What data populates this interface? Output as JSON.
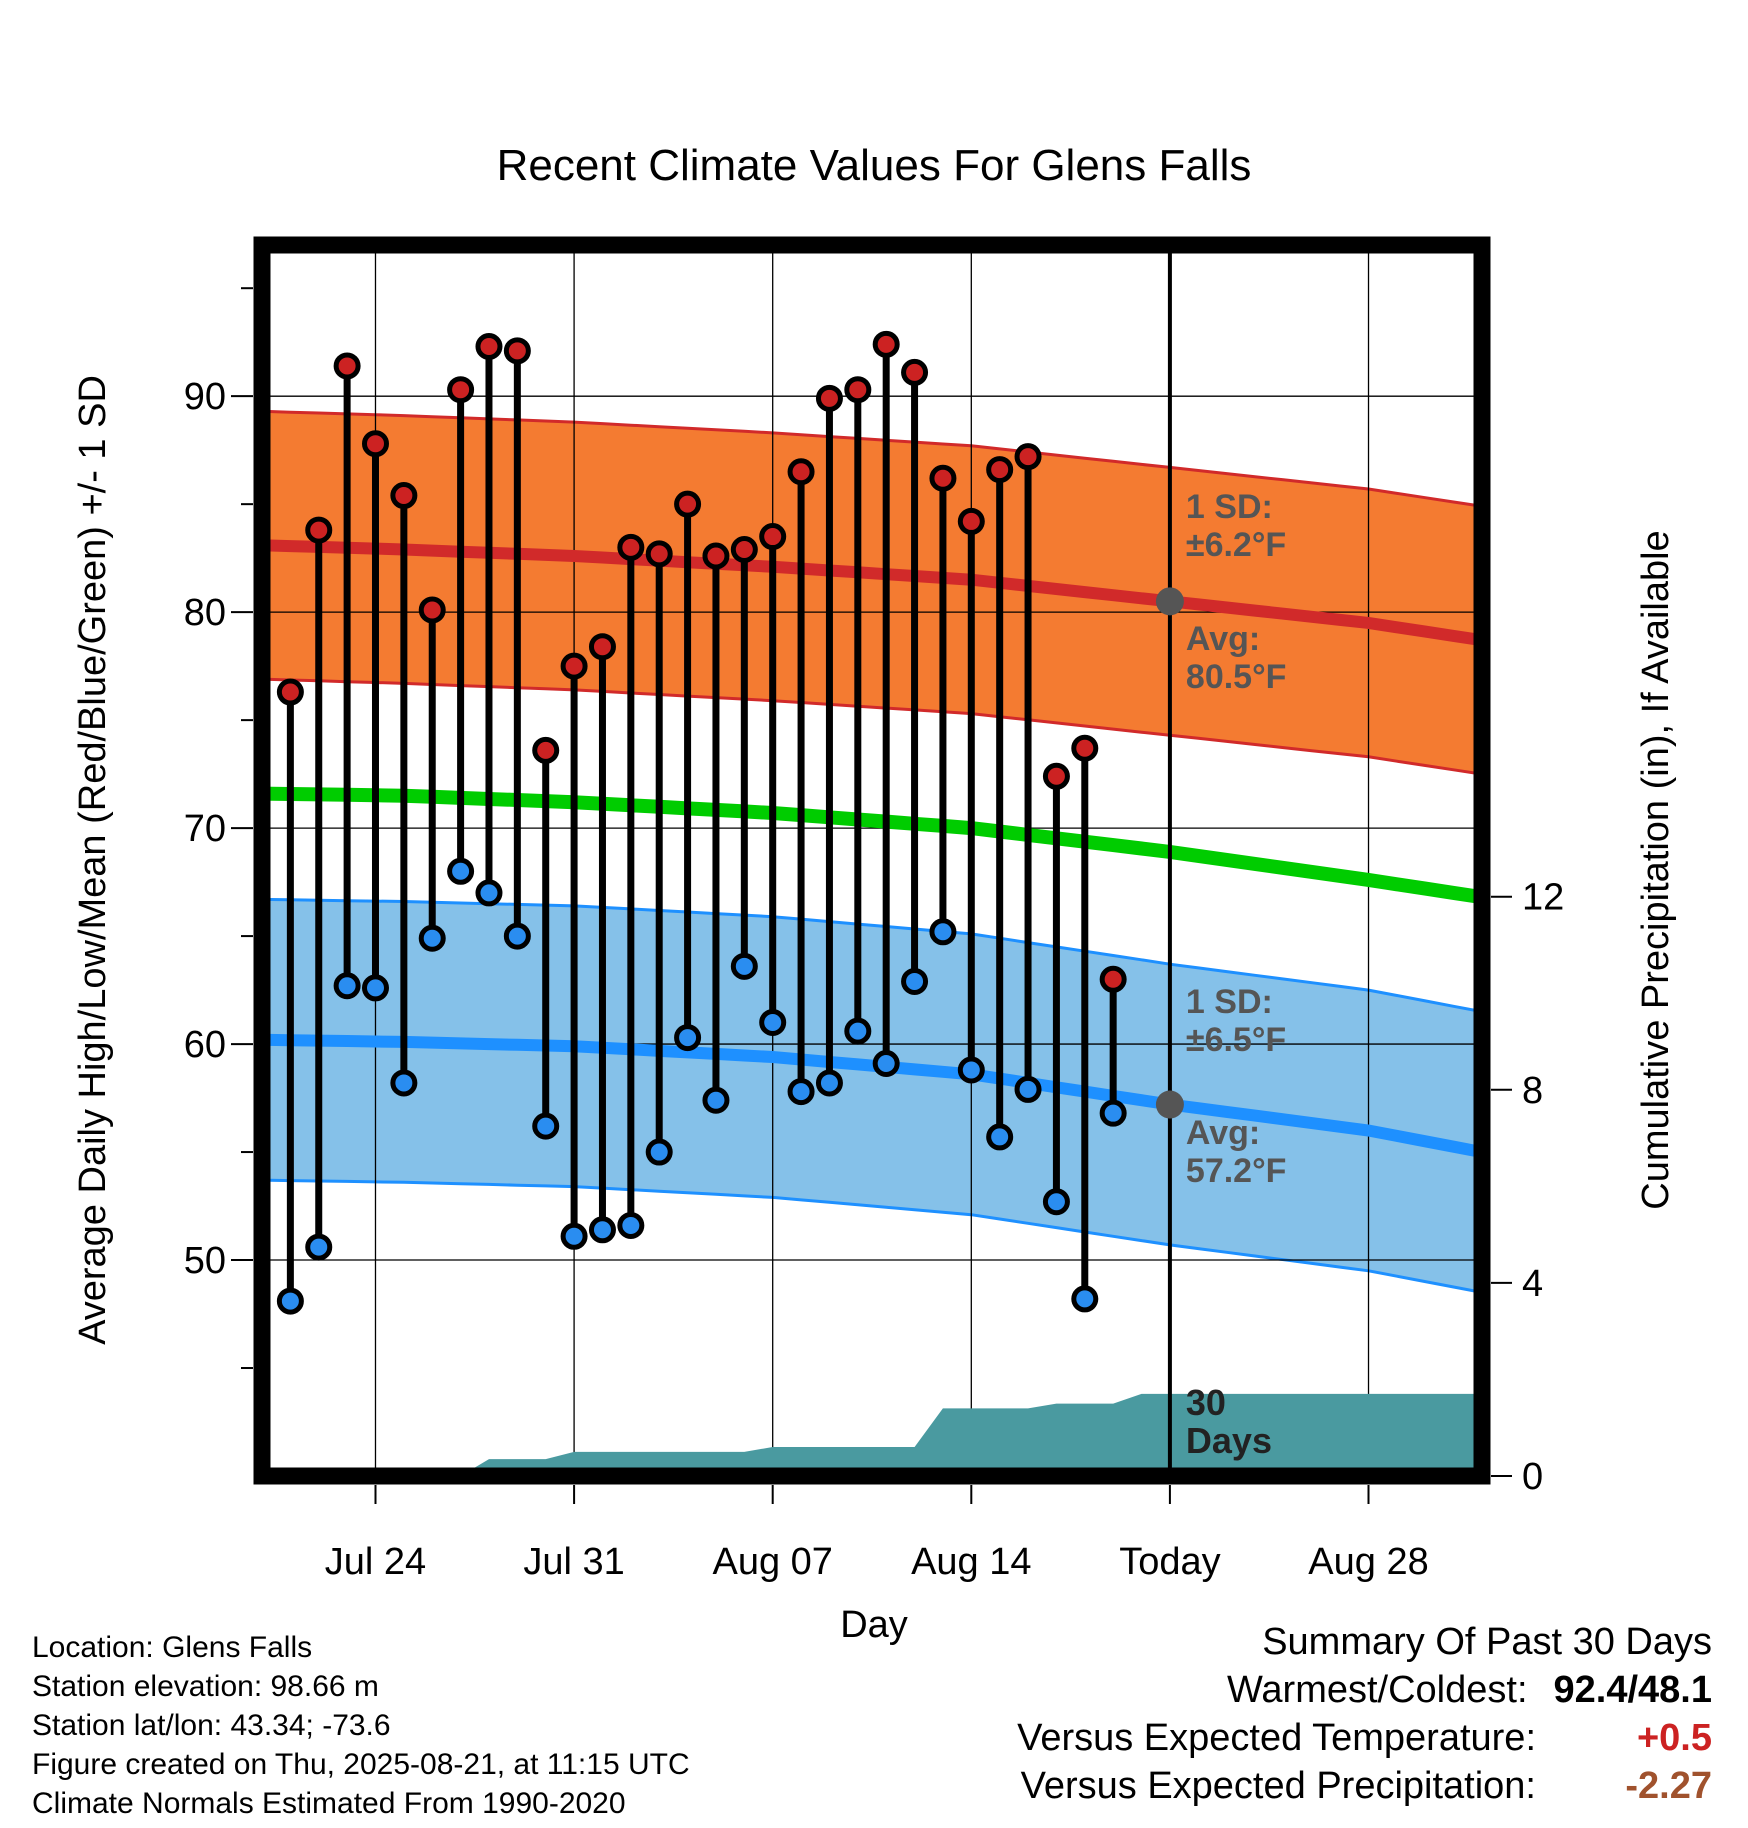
{
  "chart_data": {
    "type": "line",
    "title": "Recent Climate Values For Glens Falls",
    "xlabel": "Day",
    "ylabel_left": "Average Daily High/Low/Mean (Red/Blue/Green) +/- 1 SD",
    "ylabel_right": "Cumulative Precipitation (in), If Available",
    "x_tick_labels": [
      "Jul 24",
      "Jul 31",
      "Aug 07",
      "Aug 14",
      "Today",
      "Aug 28"
    ],
    "x_tick_days": [
      "2025-07-24",
      "2025-07-31",
      "2025-08-07",
      "2025-08-14",
      "2025-08-21",
      "2025-08-28"
    ],
    "xlim": [
      "2025-07-20",
      "2025-09-01"
    ],
    "ylim_left": [
      40,
      97
    ],
    "y_ticks_left": [
      50,
      60,
      70,
      80,
      90
    ],
    "ylim_right": [
      0,
      25.5
    ],
    "y_ticks_right": [
      0,
      4,
      8,
      12
    ],
    "grid": true,
    "today": "2025-08-21",
    "days": [
      "2025-07-21",
      "2025-07-22",
      "2025-07-23",
      "2025-07-24",
      "2025-07-25",
      "2025-07-26",
      "2025-07-27",
      "2025-07-28",
      "2025-07-29",
      "2025-07-30",
      "2025-07-31",
      "2025-08-01",
      "2025-08-02",
      "2025-08-03",
      "2025-08-04",
      "2025-08-05",
      "2025-08-06",
      "2025-08-07",
      "2025-08-08",
      "2025-08-09",
      "2025-08-10",
      "2025-08-11",
      "2025-08-12",
      "2025-08-13",
      "2025-08-14",
      "2025-08-15",
      "2025-08-16",
      "2025-08-17",
      "2025-08-18",
      "2025-08-19",
      "2025-08-20"
    ],
    "daily_high": [
      76.3,
      83.8,
      91.4,
      87.8,
      85.4,
      80.1,
      90.3,
      92.3,
      92.1,
      73.6,
      77.5,
      78.4,
      83.0,
      82.7,
      85.0,
      82.6,
      82.9,
      83.5,
      86.5,
      89.9,
      90.3,
      92.4,
      91.1,
      86.2,
      84.2,
      86.6,
      87.2,
      72.4,
      73.7,
      63.0,
      null
    ],
    "daily_low": [
      48.1,
      50.6,
      62.7,
      62.6,
      58.2,
      64.9,
      68.0,
      67.0,
      65.0,
      56.2,
      51.1,
      51.4,
      51.6,
      55.0,
      60.3,
      57.4,
      63.6,
      61.0,
      57.8,
      58.2,
      60.6,
      59.1,
      62.9,
      65.2,
      58.8,
      55.7,
      57.9,
      52.7,
      48.2,
      56.8,
      null
    ],
    "normal_days": [
      "2025-07-20",
      "2025-07-25",
      "2025-07-31",
      "2025-08-07",
      "2025-08-14",
      "2025-08-21",
      "2025-08-28",
      "2025-09-01"
    ],
    "normal_high": [
      83.1,
      82.9,
      82.6,
      82.1,
      81.5,
      80.5,
      79.5,
      78.7
    ],
    "normal_high_sd": 6.2,
    "normal_low": [
      60.2,
      60.1,
      59.9,
      59.4,
      58.6,
      57.2,
      56.0,
      55.0
    ],
    "normal_low_sd": 6.5,
    "normal_mean": [
      71.6,
      71.5,
      71.2,
      70.7,
      70.0,
      68.9,
      67.6,
      66.8
    ],
    "cumulative_precip_days": [
      "2025-07-20",
      "2025-07-27",
      "2025-07-28",
      "2025-07-30",
      "2025-07-31",
      "2025-08-06",
      "2025-08-07",
      "2025-08-12",
      "2025-08-13",
      "2025-08-16",
      "2025-08-17",
      "2025-08-19",
      "2025-08-20",
      "2025-09-01"
    ],
    "cumulative_precip": [
      0,
      0,
      0.35,
      0.35,
      0.5,
      0.5,
      0.6,
      0.6,
      1.4,
      1.4,
      1.5,
      1.5,
      1.7,
      1.7
    ],
    "annotations": {
      "high_sd": [
        "1 SD:",
        "±6.2°F"
      ],
      "high_avg": [
        "Avg:",
        "80.5°F"
      ],
      "low_sd": [
        "1 SD:",
        "±6.5°F"
      ],
      "low_avg": [
        "Avg:",
        "57.2°F"
      ],
      "period": [
        "30",
        "Days"
      ]
    },
    "colors": {
      "high_band": "#f47b31",
      "high_line": "#d12a2a",
      "low_band": "#85c1e9",
      "low_line": "#1e90ff",
      "mean_line": "#00cc00",
      "precip": "#4a9aa0",
      "high_marker": "#cc2222",
      "low_marker": "#2a8df0"
    }
  },
  "info": {
    "location": "Location: Glens Falls",
    "elevation": "Station elevation: 98.66 m",
    "latlon": "Station lat/lon: 43.34; -73.6",
    "created": "Figure created on Thu, 2025-08-21, at 11:15 UTC",
    "normals": "Climate Normals Estimated From 1990-2020"
  },
  "summary": {
    "heading": "Summary Of Past 30 Days",
    "warmest_label": "Warmest/Coldest:",
    "warmest_value": "92.4/48.1",
    "temp_label": "Versus Expected Temperature:",
    "temp_value": "+0.5",
    "temp_color": "#cc2222",
    "precip_label": "Versus Expected Precipitation:",
    "precip_value": "-2.27",
    "precip_color": "#a0522d"
  }
}
